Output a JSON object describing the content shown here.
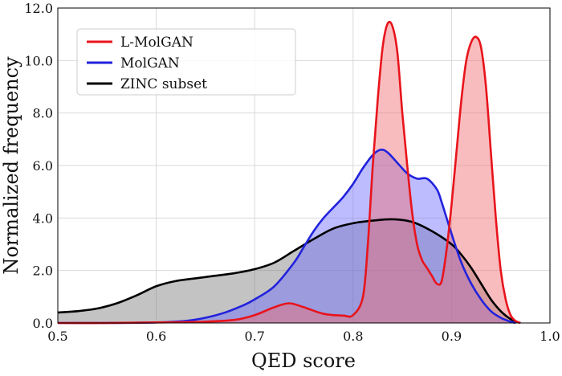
{
  "chart_data": {
    "type": "area",
    "title": "",
    "xlabel": "QED score",
    "ylabel": "Normalized frequency",
    "xlim": [
      0.5,
      1.0
    ],
    "ylim": [
      0,
      12
    ],
    "xticks": [
      0.5,
      0.6,
      0.7,
      0.8,
      0.9,
      1.0
    ],
    "xtick_labels": [
      "0.5",
      "0.6",
      "0.7",
      "0.8",
      "0.9",
      "1.0"
    ],
    "yticks": [
      0,
      2,
      4,
      6,
      8,
      10,
      12
    ],
    "ytick_labels": [
      "0.0",
      "2.0",
      "4.0",
      "6.0",
      "8.0",
      "10.0",
      "12.0"
    ],
    "grid": true,
    "legend_position": "top-left",
    "series": [
      {
        "name": "L-MolGAN",
        "line_color": "#e8141c",
        "fill_color": "#f26b6f",
        "fill_opacity": 0.45,
        "points": [
          [
            0.5,
            0.0
          ],
          [
            0.55,
            0.0
          ],
          [
            0.6,
            0.02
          ],
          [
            0.65,
            0.05
          ],
          [
            0.68,
            0.12
          ],
          [
            0.7,
            0.3
          ],
          [
            0.72,
            0.6
          ],
          [
            0.735,
            0.75
          ],
          [
            0.75,
            0.6
          ],
          [
            0.77,
            0.35
          ],
          [
            0.79,
            0.28
          ],
          [
            0.8,
            0.3
          ],
          [
            0.81,
            1.0
          ],
          [
            0.815,
            3.0
          ],
          [
            0.82,
            6.0
          ],
          [
            0.825,
            8.5
          ],
          [
            0.83,
            10.5
          ],
          [
            0.835,
            11.4
          ],
          [
            0.84,
            11.3
          ],
          [
            0.845,
            10.3
          ],
          [
            0.85,
            8.0
          ],
          [
            0.855,
            6.0
          ],
          [
            0.86,
            4.2
          ],
          [
            0.865,
            3.0
          ],
          [
            0.87,
            2.4
          ],
          [
            0.875,
            2.1
          ],
          [
            0.88,
            1.8
          ],
          [
            0.885,
            1.5
          ],
          [
            0.89,
            1.6
          ],
          [
            0.895,
            2.8
          ],
          [
            0.9,
            4.5
          ],
          [
            0.905,
            6.5
          ],
          [
            0.91,
            8.5
          ],
          [
            0.915,
            10.0
          ],
          [
            0.92,
            10.7
          ],
          [
            0.925,
            10.9
          ],
          [
            0.93,
            10.5
          ],
          [
            0.935,
            9.0
          ],
          [
            0.94,
            6.5
          ],
          [
            0.945,
            4.0
          ],
          [
            0.95,
            2.0
          ],
          [
            0.955,
            0.9
          ],
          [
            0.96,
            0.3
          ],
          [
            0.965,
            0.08
          ],
          [
            0.97,
            0.0
          ]
        ]
      },
      {
        "name": "MolGAN",
        "line_color": "#2222dd",
        "fill_color": "#6b6bff",
        "fill_opacity": 0.45,
        "points": [
          [
            0.5,
            0.0
          ],
          [
            0.55,
            0.0
          ],
          [
            0.6,
            0.02
          ],
          [
            0.63,
            0.08
          ],
          [
            0.65,
            0.2
          ],
          [
            0.67,
            0.4
          ],
          [
            0.69,
            0.7
          ],
          [
            0.7,
            0.9
          ],
          [
            0.72,
            1.4
          ],
          [
            0.74,
            2.3
          ],
          [
            0.75,
            2.9
          ],
          [
            0.76,
            3.5
          ],
          [
            0.77,
            4.0
          ],
          [
            0.78,
            4.4
          ],
          [
            0.79,
            4.8
          ],
          [
            0.8,
            5.3
          ],
          [
            0.81,
            5.9
          ],
          [
            0.82,
            6.4
          ],
          [
            0.828,
            6.6
          ],
          [
            0.835,
            6.5
          ],
          [
            0.845,
            6.1
          ],
          [
            0.855,
            5.7
          ],
          [
            0.865,
            5.5
          ],
          [
            0.875,
            5.5
          ],
          [
            0.885,
            5.1
          ],
          [
            0.89,
            4.6
          ],
          [
            0.9,
            3.4
          ],
          [
            0.91,
            2.3
          ],
          [
            0.92,
            1.5
          ],
          [
            0.93,
            0.9
          ],
          [
            0.94,
            0.45
          ],
          [
            0.95,
            0.2
          ],
          [
            0.96,
            0.05
          ],
          [
            0.965,
            0.0
          ]
        ]
      },
      {
        "name": "ZINC subset",
        "line_color": "#000000",
        "fill_color": "#7a7a7a",
        "fill_opacity": 0.45,
        "points": [
          [
            0.5,
            0.4
          ],
          [
            0.52,
            0.45
          ],
          [
            0.54,
            0.55
          ],
          [
            0.56,
            0.75
          ],
          [
            0.58,
            1.05
          ],
          [
            0.6,
            1.4
          ],
          [
            0.62,
            1.6
          ],
          [
            0.64,
            1.7
          ],
          [
            0.66,
            1.8
          ],
          [
            0.68,
            1.9
          ],
          [
            0.7,
            2.05
          ],
          [
            0.72,
            2.3
          ],
          [
            0.74,
            2.75
          ],
          [
            0.76,
            3.2
          ],
          [
            0.78,
            3.6
          ],
          [
            0.8,
            3.8
          ],
          [
            0.82,
            3.9
          ],
          [
            0.84,
            3.95
          ],
          [
            0.86,
            3.85
          ],
          [
            0.88,
            3.5
          ],
          [
            0.9,
            3.0
          ],
          [
            0.91,
            2.6
          ],
          [
            0.92,
            2.1
          ],
          [
            0.93,
            1.5
          ],
          [
            0.94,
            0.9
          ],
          [
            0.95,
            0.45
          ],
          [
            0.96,
            0.15
          ],
          [
            0.97,
            0.0
          ]
        ]
      }
    ]
  }
}
